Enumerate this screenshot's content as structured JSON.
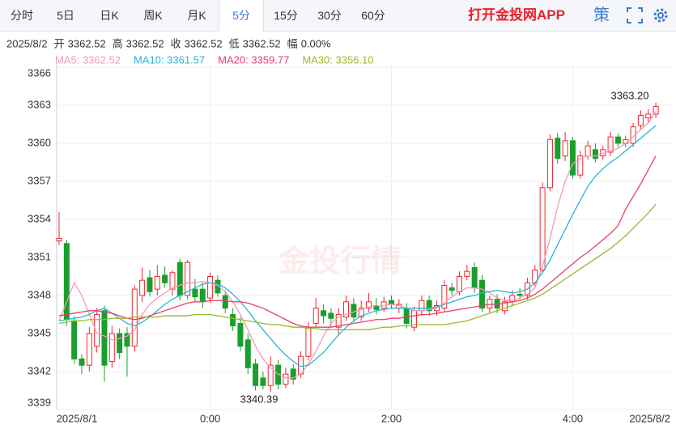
{
  "tabs": [
    "分时",
    "5日",
    "日K",
    "周K",
    "月K",
    "5分",
    "15分",
    "30分",
    "60分"
  ],
  "app_link": "打开金投网APP",
  "strategy": "策",
  "info": {
    "date": "2025/8/2",
    "items": [
      {
        "label": "开",
        "value": "3362.52"
      },
      {
        "label": "高",
        "value": "3362.52"
      },
      {
        "label": "收",
        "value": "3362.52"
      },
      {
        "label": "低",
        "value": "3362.52"
      },
      {
        "label": "幅",
        "value": "0.00%"
      }
    ]
  },
  "chart_data": {
    "type": "candlestick",
    "watermark": "金投行情",
    "categories": [
      "2025/8/1",
      null,
      null,
      null,
      null,
      null,
      null,
      null,
      null,
      null,
      null,
      null,
      null,
      null,
      null,
      null,
      null,
      null,
      null,
      null,
      "0:00",
      null,
      null,
      null,
      null,
      null,
      null,
      null,
      null,
      null,
      null,
      null,
      null,
      null,
      null,
      null,
      null,
      null,
      null,
      null,
      null,
      null,
      null,
      null,
      "2:00",
      null,
      null,
      null,
      null,
      null,
      null,
      null,
      null,
      null,
      null,
      null,
      null,
      null,
      null,
      null,
      null,
      null,
      null,
      null,
      null,
      null,
      null,
      null,
      "4:00",
      null,
      null,
      null,
      null,
      null,
      null,
      null,
      null,
      null,
      null,
      "2025/8/2"
    ],
    "ylim": [
      3339,
      3366
    ],
    "yticks": [
      3339,
      3342,
      3345,
      3348,
      3351,
      3354,
      3357,
      3360,
      3363,
      3366
    ],
    "grid": true,
    "up_color": "#f0262f",
    "down_color": "#1a9e2c",
    "candles": {
      "open": [
        3352.3,
        3352.1,
        3346.0,
        3343.0,
        3342.5,
        3344.0,
        3346.8,
        3342.8,
        3345.0,
        3345.0,
        3344.0,
        3348.0,
        3349.4,
        3348.5,
        3349.6,
        3348.5,
        3350.6,
        3348.0,
        3348.5,
        3348.5,
        3347.8,
        3349.2,
        3348.0,
        3346.5,
        3345.8,
        3344.5,
        3342.6,
        3341.5,
        3340.9,
        3342.5,
        3341.0,
        3342.2,
        3341.8,
        3343.2,
        3345.8,
        3346.8,
        3346.6,
        3345.5,
        3346.3,
        3347.3,
        3346.3,
        3347.0,
        3347.2,
        3347.0,
        3347.6,
        3347.0,
        3347.0,
        3345.5,
        3346.8,
        3347.6,
        3346.8,
        3347.0,
        3348.6,
        3348.3,
        3349.5,
        3350.2,
        3349.2,
        3347.0,
        3347.7,
        3346.8,
        3347.5,
        3348.1,
        3348.0,
        3349.0,
        3350.0,
        3356.5,
        3360.4,
        3359.0,
        3360.2,
        3357.5,
        3359.0,
        3359.5,
        3359.0,
        3359.3,
        3360.5,
        3360.0,
        3360.0,
        3361.4,
        3362.0,
        3362.3
      ],
      "high": [
        3354.6,
        3352.4,
        3346.4,
        3343.4,
        3345.5,
        3347.0,
        3347.2,
        3345.6,
        3345.4,
        3345.5,
        3348.8,
        3350.2,
        3350.0,
        3350.4,
        3350.3,
        3350.0,
        3350.9,
        3350.8,
        3349.3,
        3349.0,
        3349.8,
        3349.6,
        3348.4,
        3347.0,
        3346.3,
        3345.0,
        3343.0,
        3342.0,
        3343.2,
        3342.9,
        3342.3,
        3342.6,
        3343.6,
        3345.9,
        3347.8,
        3347.3,
        3347.0,
        3347.0,
        3348.0,
        3347.8,
        3347.6,
        3348.2,
        3347.8,
        3347.9,
        3348.0,
        3347.7,
        3347.4,
        3347.1,
        3348.0,
        3348.0,
        3347.6,
        3349.2,
        3349.0,
        3349.9,
        3350.4,
        3350.6,
        3349.6,
        3348.0,
        3348.1,
        3347.9,
        3348.4,
        3348.6,
        3349.4,
        3350.4,
        3356.9,
        3360.7,
        3360.8,
        3360.9,
        3360.5,
        3359.4,
        3360.2,
        3360.0,
        3359.8,
        3360.9,
        3360.8,
        3360.6,
        3361.6,
        3362.6,
        3362.7,
        3363.2
      ],
      "low": [
        3352.0,
        3345.6,
        3342.6,
        3341.8,
        3342.0,
        3343.5,
        3341.2,
        3342.3,
        3343.0,
        3341.6,
        3343.6,
        3347.5,
        3347.9,
        3348.0,
        3348.6,
        3348.0,
        3347.6,
        3347.7,
        3347.5,
        3347.0,
        3347.4,
        3347.9,
        3346.6,
        3345.2,
        3343.6,
        3341.8,
        3340.5,
        3340.6,
        3340.39,
        3340.6,
        3340.7,
        3341.0,
        3341.5,
        3342.9,
        3345.5,
        3345.8,
        3345.6,
        3344.9,
        3346.0,
        3345.9,
        3346.0,
        3346.7,
        3346.5,
        3346.7,
        3347.0,
        3346.6,
        3345.4,
        3345.2,
        3346.4,
        3346.4,
        3346.4,
        3346.7,
        3348.0,
        3348.0,
        3349.2,
        3348.2,
        3346.7,
        3346.6,
        3346.6,
        3346.5,
        3347.2,
        3347.7,
        3347.7,
        3348.7,
        3349.8,
        3356.2,
        3358.4,
        3358.6,
        3357.2,
        3357.2,
        3358.7,
        3358.5,
        3358.7,
        3359.0,
        3359.7,
        3359.7,
        3359.7,
        3361.1,
        3361.6,
        3362.0
      ],
      "close": [
        3352.5,
        3346.1,
        3343.0,
        3342.5,
        3345.0,
        3346.5,
        3342.5,
        3345.0,
        3343.5,
        3344.0,
        3348.5,
        3349.2,
        3348.3,
        3349.5,
        3349.0,
        3349.8,
        3348.0,
        3350.6,
        3347.9,
        3347.5,
        3349.5,
        3348.2,
        3347.0,
        3345.6,
        3344.0,
        3342.3,
        3340.9,
        3340.9,
        3342.5,
        3341.0,
        3341.8,
        3341.4,
        3343.2,
        3345.5,
        3347.0,
        3346.4,
        3346.2,
        3346.5,
        3347.5,
        3346.3,
        3347.0,
        3347.5,
        3346.9,
        3347.5,
        3347.3,
        3347.3,
        3345.8,
        3346.8,
        3347.6,
        3346.8,
        3347.2,
        3348.8,
        3348.4,
        3349.5,
        3349.9,
        3348.6,
        3347.0,
        3347.7,
        3347.0,
        3347.5,
        3348.0,
        3348.0,
        3349.0,
        3350.0,
        3356.5,
        3360.3,
        3358.8,
        3360.2,
        3357.5,
        3359.0,
        3359.8,
        3358.8,
        3359.5,
        3360.5,
        3360.0,
        3360.3,
        3361.3,
        3362.2,
        3362.3,
        3362.9
      ]
    },
    "series": [
      {
        "name": "MA5",
        "legend": "MA5: 3362.52",
        "color": "#f39ab6",
        "values": [
          3346.0,
          3347.5,
          3349.0,
          3348.0,
          3346.5,
          3345.0,
          3344.8,
          3344.5,
          3344.6,
          3344.8,
          3345.3,
          3346.5,
          3347.3,
          3347.8,
          3348.2,
          3348.6,
          3348.8,
          3349.0,
          3349.0,
          3349.1,
          3349.0,
          3348.8,
          3348.3,
          3347.5,
          3346.5,
          3345.3,
          3344.0,
          3343.0,
          3342.3,
          3341.8,
          3341.5,
          3341.5,
          3341.8,
          3342.6,
          3343.6,
          3344.8,
          3345.8,
          3346.3,
          3346.5,
          3346.7,
          3346.9,
          3347.1,
          3347.2,
          3347.2,
          3347.3,
          3347.2,
          3347.0,
          3346.8,
          3346.8,
          3346.9,
          3347.0,
          3347.4,
          3347.9,
          3348.3,
          3348.6,
          3348.6,
          3348.5,
          3348.2,
          3347.8,
          3347.6,
          3347.6,
          3347.8,
          3348.1,
          3348.6,
          3350.3,
          3352.5,
          3355.0,
          3357.0,
          3358.4,
          3358.8,
          3359.0,
          3359.0,
          3359.2,
          3359.4,
          3359.6,
          3360.0,
          3360.5,
          3361.1,
          3361.6,
          3362.5
        ]
      },
      {
        "name": "MA10",
        "legend": "MA10: 3361.57",
        "color": "#27b6d6",
        "values": [
          3346.0,
          3346.1,
          3346.2,
          3346.3,
          3346.5,
          3346.8,
          3347.0,
          3346.6,
          3346.2,
          3345.8,
          3345.6,
          3345.9,
          3346.3,
          3346.8,
          3347.3,
          3347.7,
          3348.0,
          3348.3,
          3348.6,
          3348.9,
          3349.0,
          3348.9,
          3348.6,
          3348.1,
          3347.5,
          3346.8,
          3346.0,
          3345.3,
          3344.6,
          3343.9,
          3343.3,
          3342.8,
          3342.4,
          3342.5,
          3343.0,
          3343.5,
          3344.2,
          3344.9,
          3345.5,
          3346.0,
          3346.4,
          3346.6,
          3346.8,
          3346.9,
          3347.0,
          3347.0,
          3347.0,
          3347.0,
          3347.0,
          3347.0,
          3347.1,
          3347.3,
          3347.5,
          3347.7,
          3347.9,
          3348.0,
          3348.2,
          3348.3,
          3348.4,
          3348.3,
          3348.2,
          3348.3,
          3348.5,
          3349.0,
          3349.8,
          3350.8,
          3352.0,
          3353.2,
          3354.4,
          3355.5,
          3356.6,
          3357.4,
          3358.0,
          3358.5,
          3358.9,
          3359.4,
          3359.9,
          3360.4,
          3360.9,
          3361.4
        ]
      },
      {
        "name": "MA20",
        "legend": "MA20: 3359.77",
        "color": "#e83e6c",
        "values": [
          3346.4,
          3346.5,
          3346.6,
          3346.7,
          3346.8,
          3346.8,
          3346.7,
          3346.6,
          3346.4,
          3346.2,
          3346.1,
          3346.2,
          3346.4,
          3346.6,
          3346.8,
          3347.0,
          3347.2,
          3347.4,
          3347.5,
          3347.5,
          3347.6,
          3347.6,
          3347.6,
          3347.5,
          3347.5,
          3347.4,
          3347.2,
          3347.0,
          3346.7,
          3346.4,
          3346.1,
          3345.8,
          3345.6,
          3345.5,
          3345.5,
          3345.5,
          3345.5,
          3345.6,
          3345.7,
          3345.8,
          3345.9,
          3346.0,
          3346.1,
          3346.1,
          3346.2,
          3346.2,
          3346.3,
          3346.4,
          3346.5,
          3346.5,
          3346.6,
          3346.7,
          3346.8,
          3346.9,
          3347.0,
          3347.1,
          3347.2,
          3347.3,
          3347.3,
          3347.4,
          3347.5,
          3347.6,
          3347.8,
          3348.1,
          3348.5,
          3349.0,
          3349.5,
          3350.0,
          3350.5,
          3351.0,
          3351.4,
          3351.9,
          3352.4,
          3352.9,
          3353.5,
          3354.8,
          3355.8,
          3356.8,
          3357.9,
          3359.0
        ]
      },
      {
        "name": "MA30",
        "legend": "MA30: 3356.10",
        "color": "#9ab82a",
        "values": [
          3345.8,
          3345.9,
          3346.0,
          3346.0,
          3346.1,
          3346.1,
          3346.1,
          3346.2,
          3346.2,
          3346.2,
          3346.3,
          3346.3,
          3346.3,
          3346.3,
          3346.4,
          3346.4,
          3346.4,
          3346.4,
          3346.5,
          3346.5,
          3346.5,
          3346.4,
          3346.3,
          3346.2,
          3346.1,
          3346.0,
          3345.9,
          3345.8,
          3345.7,
          3345.7,
          3345.6,
          3345.5,
          3345.5,
          3345.4,
          3345.4,
          3345.3,
          3345.3,
          3345.3,
          3345.3,
          3345.3,
          3345.3,
          3345.3,
          3345.4,
          3345.5,
          3345.5,
          3345.6,
          3345.6,
          3345.7,
          3345.7,
          3345.7,
          3345.7,
          3345.7,
          3345.8,
          3345.9,
          3346.0,
          3346.2,
          3346.4,
          3346.6,
          3346.8,
          3347.0,
          3347.2,
          3347.4,
          3347.6,
          3347.8,
          3348.1,
          3348.5,
          3348.9,
          3349.3,
          3349.7,
          3350.1,
          3350.5,
          3350.9,
          3351.3,
          3351.7,
          3352.2,
          3352.7,
          3353.3,
          3353.9,
          3354.5,
          3355.2
        ]
      }
    ],
    "annotations": [
      {
        "text": "3363.20"
      },
      {
        "text": "3340.39"
      }
    ]
  }
}
